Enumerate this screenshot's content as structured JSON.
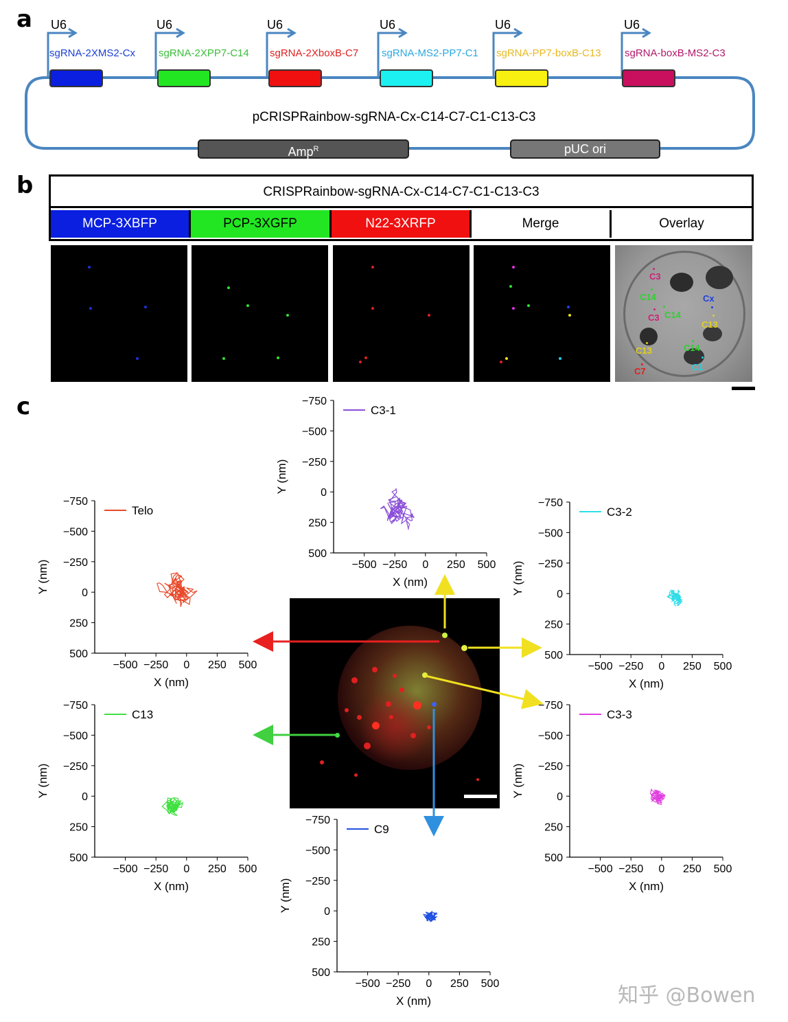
{
  "panels": {
    "a": "a",
    "b": "b",
    "c": "c"
  },
  "panel_a": {
    "promoter_label": "U6",
    "sgrnas": [
      {
        "label": "sgRNA-2XMS2-Cx",
        "text_color": "#1a3fd6",
        "box_color": "#0a1fe0"
      },
      {
        "label": "sgRNA-2XPP7-C14",
        "text_color": "#3bbd3b",
        "box_color": "#22e622"
      },
      {
        "label": "sgRNA-2XboxB-C7",
        "text_color": "#e02020",
        "box_color": "#f01010"
      },
      {
        "label": "sgRNA-MS2-PP7-C1",
        "text_color": "#2aa8e0",
        "box_color": "#1cf0f0"
      },
      {
        "label": "sgRNA-PP7-boxB-C13",
        "text_color": "#e8b820",
        "box_color": "#f8f010"
      },
      {
        "label": "sgRNA-boxB-MS2-C3",
        "text_color": "#b0186a",
        "box_color": "#c8105e"
      }
    ],
    "plasmid_name": "pCRISPRainbow-sgRNA-Cx-C14-C7-C1-C13-C3",
    "amp_label": "Amp",
    "amp_superscript": "R",
    "ori_label": "pUC ori"
  },
  "panel_b": {
    "title": "CRISPRainbow-sgRNA-Cx-C14-C7-C1-C13-C3",
    "channels": [
      {
        "label": "MCP-3XBFP",
        "bg": "#0a1fe0",
        "fg": "#ffffff"
      },
      {
        "label": "PCP-3XGFP",
        "bg": "#22e622",
        "fg": "#000000"
      },
      {
        "label": "N22-3XRFP",
        "bg": "#f01010",
        "fg": "#ffffff"
      },
      {
        "label": "Merge",
        "bg": "#ffffff",
        "fg": "#000000"
      },
      {
        "label": "Overlay",
        "bg": "#ffffff",
        "fg": "#000000"
      }
    ],
    "overlay_labels": [
      {
        "text": "C3",
        "color": "#d0207a"
      },
      {
        "text": "C14",
        "color": "#30d030"
      },
      {
        "text": "Cx",
        "color": "#2040e0"
      },
      {
        "text": "C3",
        "color": "#d0207a"
      },
      {
        "text": "C14",
        "color": "#30d030"
      },
      {
        "text": "C13",
        "color": "#e0d020"
      },
      {
        "text": "C13",
        "color": "#e0d020"
      },
      {
        "text": "C14",
        "color": "#30d030"
      },
      {
        "text": "C7",
        "color": "#e02020"
      },
      {
        "text": "C1",
        "color": "#20d0e0"
      }
    ]
  },
  "panel_c": {
    "xlabel": "X (nm)",
    "ylabel": "Y (nm)",
    "x_ticks": [
      "−500",
      "−250",
      "0",
      "250",
      "500"
    ],
    "y_ticks": [
      "−750",
      "−500",
      "−250",
      "0",
      "250",
      "500"
    ]
  },
  "chart_data": [
    {
      "type": "line",
      "name": "C3-1",
      "color": "#8a4fd8",
      "center": [
        -200,
        150
      ],
      "spread": 150,
      "xlim": [
        -750,
        500
      ],
      "ylim": [
        -750,
        500
      ]
    },
    {
      "type": "line",
      "name": "Telo",
      "color": "#e84a2a",
      "center": [
        -40,
        0
      ],
      "spread": 170,
      "xlim": [
        -750,
        500
      ],
      "ylim": [
        -750,
        500
      ]
    },
    {
      "type": "line",
      "name": "C3-2",
      "color": "#30dde8",
      "center": [
        120,
        40
      ],
      "spread": 70,
      "xlim": [
        -750,
        500
      ],
      "ylim": [
        -750,
        500
      ]
    },
    {
      "type": "line",
      "name": "C13",
      "color": "#40e040",
      "center": [
        -110,
        80
      ],
      "spread": 85,
      "xlim": [
        -750,
        500
      ],
      "ylim": [
        -750,
        500
      ]
    },
    {
      "type": "line",
      "name": "C3-3",
      "color": "#e040e0",
      "center": [
        -40,
        10
      ],
      "spread": 70,
      "xlim": [
        -750,
        500
      ],
      "ylim": [
        -750,
        500
      ]
    },
    {
      "type": "line",
      "name": "C9",
      "color": "#2050e0",
      "center": [
        20,
        60
      ],
      "spread": 60,
      "xlim": [
        -750,
        500
      ],
      "ylim": [
        -750,
        500
      ]
    }
  ],
  "watermark": "知乎 @Bowen"
}
